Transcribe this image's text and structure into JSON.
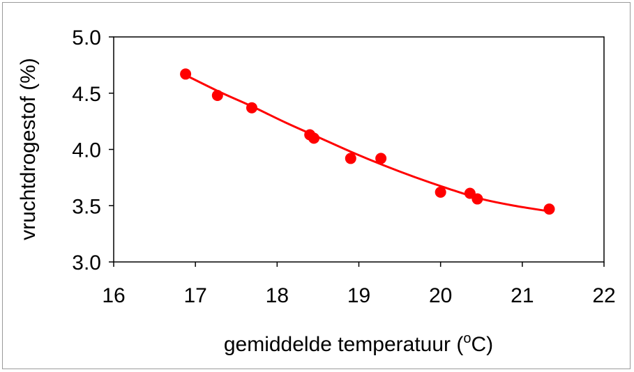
{
  "chart_data": {
    "type": "scatter",
    "xlabel": "gemiddelde temperatuur (",
    "xlabel_superscript": "o",
    "xlabel_suffix": "C)",
    "ylabel": "vruchtdrogestof (%)",
    "xlim": [
      16,
      22
    ],
    "ylim": [
      3.0,
      5.0
    ],
    "x_ticks": [
      "16",
      "17",
      "18",
      "19",
      "20",
      "21",
      "22"
    ],
    "y_ticks": [
      "3.0",
      "3.5",
      "4.0",
      "4.5",
      "5.0"
    ],
    "grid": false,
    "series": [
      {
        "kind": "points",
        "color": "#ff0000",
        "points": [
          {
            "x": 16.88,
            "y": 4.67
          },
          {
            "x": 17.27,
            "y": 4.48
          },
          {
            "x": 17.69,
            "y": 4.37
          },
          {
            "x": 18.4,
            "y": 4.13
          },
          {
            "x": 18.45,
            "y": 4.1
          },
          {
            "x": 18.9,
            "y": 3.92
          },
          {
            "x": 19.27,
            "y": 3.92
          },
          {
            "x": 20.0,
            "y": 3.62
          },
          {
            "x": 20.36,
            "y": 3.61
          },
          {
            "x": 20.45,
            "y": 3.56
          },
          {
            "x": 21.33,
            "y": 3.47
          }
        ]
      },
      {
        "kind": "trendline",
        "color": "#ff0000",
        "points": [
          {
            "x": 16.88,
            "y": 4.66
          },
          {
            "x": 17.3,
            "y": 4.51
          },
          {
            "x": 17.7,
            "y": 4.38
          },
          {
            "x": 18.1,
            "y": 4.24
          },
          {
            "x": 18.5,
            "y": 4.11
          },
          {
            "x": 18.9,
            "y": 3.98
          },
          {
            "x": 19.3,
            "y": 3.86
          },
          {
            "x": 19.7,
            "y": 3.75
          },
          {
            "x": 20.1,
            "y": 3.65
          },
          {
            "x": 20.5,
            "y": 3.56
          },
          {
            "x": 20.9,
            "y": 3.5
          },
          {
            "x": 21.33,
            "y": 3.45
          }
        ]
      }
    ]
  }
}
